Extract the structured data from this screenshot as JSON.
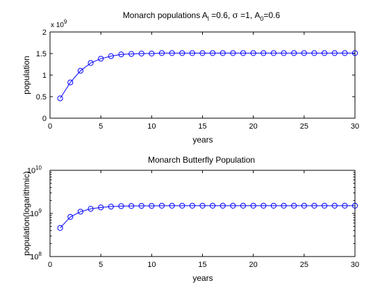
{
  "chart_data": [
    {
      "type": "line",
      "title_parts": [
        "Monarch populations A",
        "l",
        " =0.6, ",
        "σ",
        " =1, A",
        "0",
        "=0.6"
      ],
      "xlabel": "years",
      "ylabel": "population",
      "xlim": [
        0,
        30
      ],
      "ylim": [
        0,
        2
      ],
      "x_ticks": [
        "0",
        "5",
        "10",
        "15",
        "20",
        "25",
        "30"
      ],
      "y_ticks": [
        "0",
        "0.5",
        "1",
        "1.5",
        "2"
      ],
      "y_multiplier_parts": [
        "x 10",
        "9"
      ],
      "grid": false,
      "marker": "circle",
      "color": "#0000ff",
      "series": [
        {
          "x": [
            1,
            2,
            3,
            4,
            5,
            6,
            7,
            8,
            9,
            10,
            11,
            12,
            13,
            14,
            15,
            16,
            17,
            18,
            19,
            20,
            21,
            22,
            23,
            24,
            25,
            26,
            27,
            28,
            29,
            30
          ],
          "values": [
            0.46,
            0.83,
            1.1,
            1.28,
            1.38,
            1.44,
            1.48,
            1.49,
            1.5,
            1.5,
            1.51,
            1.51,
            1.51,
            1.51,
            1.51,
            1.51,
            1.51,
            1.51,
            1.51,
            1.51,
            1.51,
            1.51,
            1.51,
            1.51,
            1.51,
            1.51,
            1.51,
            1.51,
            1.51,
            1.51
          ]
        }
      ],
      "values_unit_multiplier": 1000000000
    },
    {
      "type": "line",
      "title": "Monarch Butterfly Population",
      "xlabel": "years",
      "ylabel": "population(logarithmic)",
      "xlim": [
        0,
        30
      ],
      "ylim": [
        100000000,
        10000000000
      ],
      "y_scale": "log",
      "x_ticks": [
        "0",
        "5",
        "10",
        "15",
        "20",
        "25",
        "30"
      ],
      "y_ticks": [
        {
          "base": "10",
          "exp": "8"
        },
        {
          "base": "10",
          "exp": "9"
        },
        {
          "base": "10",
          "exp": "10"
        }
      ],
      "grid": false,
      "marker": "circle",
      "color": "#0000ff",
      "series": [
        {
          "x": [
            1,
            2,
            3,
            4,
            5,
            6,
            7,
            8,
            9,
            10,
            11,
            12,
            13,
            14,
            15,
            16,
            17,
            18,
            19,
            20,
            21,
            22,
            23,
            24,
            25,
            26,
            27,
            28,
            29,
            30
          ],
          "values": [
            460000000,
            830000000,
            1100000000,
            1280000000,
            1380000000,
            1440000000,
            1480000000,
            1490000000,
            1500000000,
            1500000000,
            1510000000,
            1510000000,
            1510000000,
            1510000000,
            1510000000,
            1510000000,
            1510000000,
            1510000000,
            1510000000,
            1510000000,
            1510000000,
            1510000000,
            1510000000,
            1510000000,
            1510000000,
            1510000000,
            1510000000,
            1510000000,
            1510000000,
            1510000000
          ]
        }
      ]
    }
  ]
}
